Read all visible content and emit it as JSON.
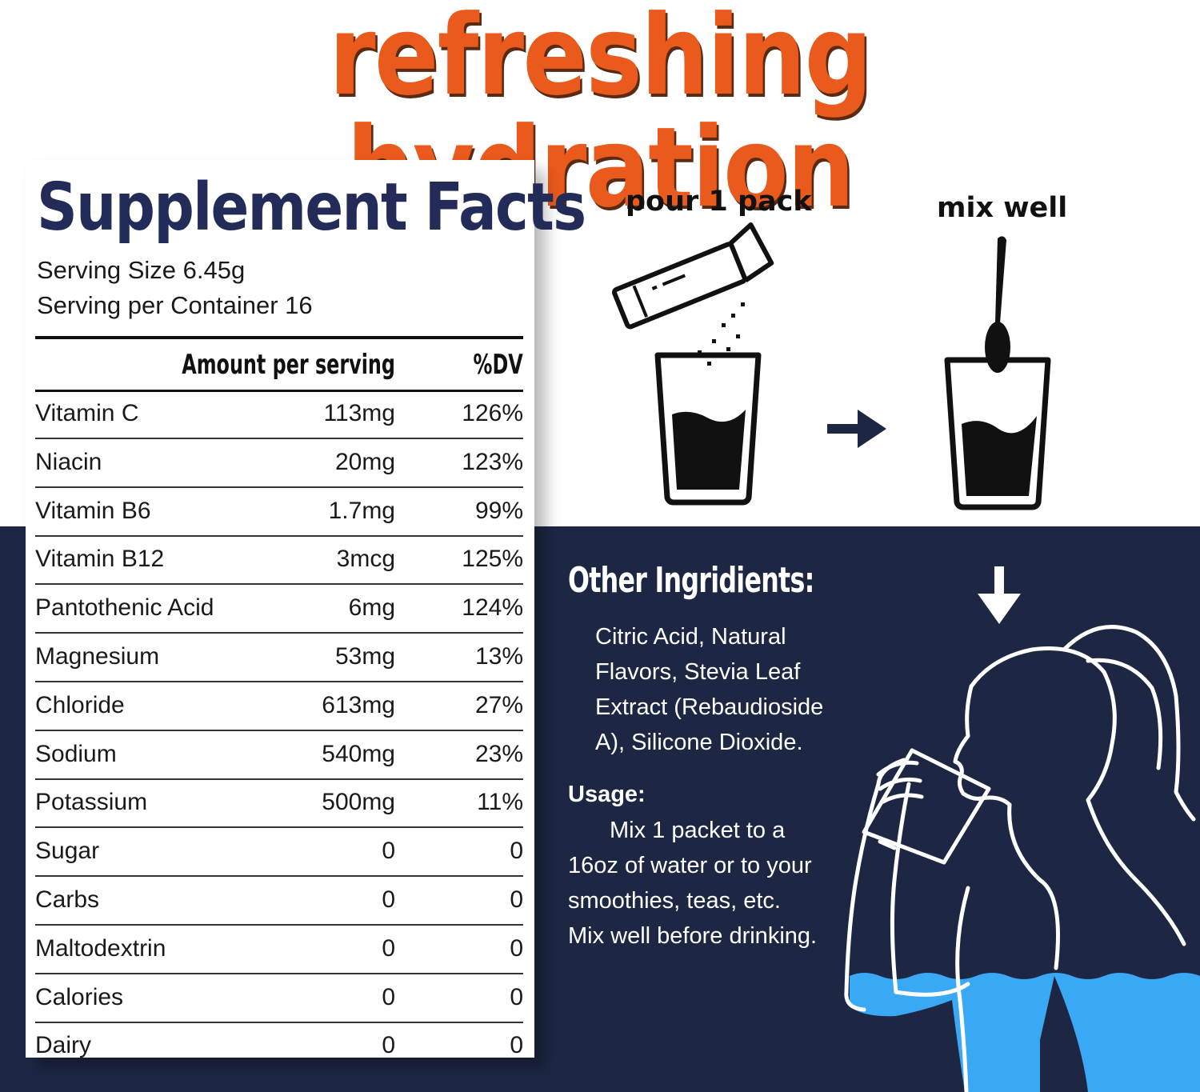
{
  "headline": "refreshing hydration",
  "facts": {
    "title": "Supplement Facts",
    "serving_size": "Serving Size 6.45g",
    "servings_per_container": "Serving per Container 16",
    "col_amount": "Amount per serving",
    "col_dv": "%DV",
    "rows": [
      {
        "name": "Vitamin C",
        "amount": "113mg",
        "dv": "126%"
      },
      {
        "name": "Niacin",
        "amount": "20mg",
        "dv": "123%"
      },
      {
        "name": "Vitamin B6",
        "amount": "1.7mg",
        "dv": "99%"
      },
      {
        "name": "Vitamin B12",
        "amount": "3mcg",
        "dv": "125%"
      },
      {
        "name": "Pantothenic Acid",
        "amount": "6mg",
        "dv": "124%"
      },
      {
        "name": "Magnesium",
        "amount": "53mg",
        "dv": "13%"
      },
      {
        "name": "Chloride",
        "amount": "613mg",
        "dv": "27%"
      },
      {
        "name": "Sodium",
        "amount": "540mg",
        "dv": "23%"
      },
      {
        "name": "Potassium",
        "amount": "500mg",
        "dv": "11%"
      },
      {
        "name": "Sugar",
        "amount": "0",
        "dv": "0"
      },
      {
        "name": "Carbs",
        "amount": "0",
        "dv": "0"
      },
      {
        "name": "Maltodextrin",
        "amount": "0",
        "dv": "0"
      },
      {
        "name": "Calories",
        "amount": "0",
        "dv": "0"
      },
      {
        "name": "Dairy",
        "amount": "0",
        "dv": "0"
      }
    ]
  },
  "steps": {
    "pour": "pour 1 pack",
    "mix": "mix well"
  },
  "other": {
    "title": "Other Ingridients:",
    "lines": [
      "Citric Acid, Natural",
      "Flavors,  Stevia Leaf",
      "Extract (Rebaudioside",
      "A), Silicone Dioxide."
    ]
  },
  "usage": {
    "title": "Usage:",
    "lines": [
      "Mix 1 packet to a",
      "16oz of water or to your",
      "smoothies, teas, etc.",
      "Mix well before drinking."
    ]
  },
  "colors": {
    "headline": "#ea5a1c",
    "navy": "#1d2744",
    "title_navy": "#232c59",
    "water": "#3aa9f5"
  }
}
